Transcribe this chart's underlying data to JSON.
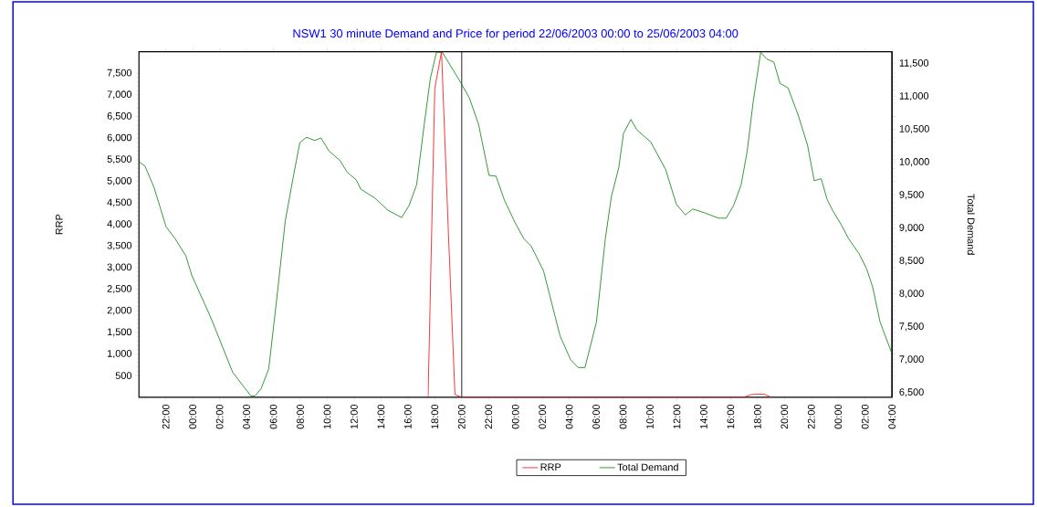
{
  "chart_data": {
    "type": "line",
    "title": "NSW1 30 minute Demand and Price for period 22/06/2003 00:00 to 25/06/2003 04:00",
    "ylabel": "RRP",
    "y2label": "Total Demand",
    "xlim": [
      "2003-06-22T20:00",
      "2003-06-25T04:00"
    ],
    "xticks": [
      {
        "value": "2003-06-22T22:00",
        "label": "22:00"
      },
      {
        "value": "2003-06-23T00:00",
        "label": "00:00"
      },
      {
        "value": "2003-06-23T02:00",
        "label": "02:00"
      },
      {
        "value": "2003-06-23T04:00",
        "label": "04:00"
      },
      {
        "value": "2003-06-23T06:00",
        "label": "06:00"
      },
      {
        "value": "2003-06-23T08:00",
        "label": "08:00"
      },
      {
        "value": "2003-06-23T10:00",
        "label": "10:00"
      },
      {
        "value": "2003-06-23T12:00",
        "label": "12:00"
      },
      {
        "value": "2003-06-23T14:00",
        "label": "14:00"
      },
      {
        "value": "2003-06-23T16:00",
        "label": "16:00"
      },
      {
        "value": "2003-06-23T18:00",
        "label": "18:00"
      },
      {
        "value": "2003-06-23T20:00",
        "label": "20:00"
      },
      {
        "value": "2003-06-23T22:00",
        "label": "22:00"
      },
      {
        "value": "2003-06-24T00:00",
        "label": "00:00"
      },
      {
        "value": "2003-06-24T02:00",
        "label": "02:00"
      },
      {
        "value": "2003-06-24T04:00",
        "label": "04:00"
      },
      {
        "value": "2003-06-24T06:00",
        "label": "06:00"
      },
      {
        "value": "2003-06-24T08:00",
        "label": "08:00"
      },
      {
        "value": "2003-06-24T10:00",
        "label": "10:00"
      },
      {
        "value": "2003-06-24T12:00",
        "label": "12:00"
      },
      {
        "value": "2003-06-24T14:00",
        "label": "14:00"
      },
      {
        "value": "2003-06-24T16:00",
        "label": "16:00"
      },
      {
        "value": "2003-06-24T18:00",
        "label": "18:00"
      },
      {
        "value": "2003-06-24T20:00",
        "label": "20:00"
      },
      {
        "value": "2003-06-24T22:00",
        "label": "22:00"
      },
      {
        "value": "2003-06-25T00:00",
        "label": "00:00"
      },
      {
        "value": "2003-06-25T02:00",
        "label": "02:00"
      },
      {
        "value": "2003-06-25T04:00",
        "label": "04:00"
      }
    ],
    "ylim": [
      0,
      8000
    ],
    "yticks": [
      500,
      {
        "value": 1000,
        "label": "1,000"
      },
      {
        "value": 1500,
        "label": "1,500"
      },
      {
        "value": 2000,
        "label": "2,000"
      },
      {
        "value": 2500,
        "label": "2,500"
      },
      {
        "value": 3000,
        "label": "3,000"
      },
      {
        "value": 3500,
        "label": "3,500"
      },
      {
        "value": 4000,
        "label": "4,000"
      },
      {
        "value": 4500,
        "label": "4,500"
      },
      {
        "value": 5000,
        "label": "5,000"
      },
      {
        "value": 5500,
        "label": "5,500"
      },
      {
        "value": 6000,
        "label": "6,000"
      },
      {
        "value": 6500,
        "label": "6,500"
      },
      {
        "value": 7000,
        "label": "7,000"
      },
      {
        "value": 7500,
        "label": "7,500"
      }
    ],
    "y2lim": [
      6430,
      11680
    ],
    "y2ticks": [
      {
        "value": 6500,
        "label": "6,500"
      },
      {
        "value": 7000,
        "label": "7,000"
      },
      {
        "value": 7500,
        "label": "7,500"
      },
      {
        "value": 8000,
        "label": "8,000"
      },
      {
        "value": 8500,
        "label": "8,500"
      },
      {
        "value": 9000,
        "label": "9,000"
      },
      {
        "value": 9500,
        "label": "9,500"
      },
      {
        "value": 10000,
        "label": "10,000"
      },
      {
        "value": 10500,
        "label": "10,500"
      },
      {
        "value": 11000,
        "label": "11,000"
      },
      {
        "value": 11500,
        "label": "11,500"
      }
    ],
    "series": [
      {
        "name": "RRP",
        "color": "#ff0000",
        "x": [
          "2003-06-23T17:30",
          "2003-06-23T18:00",
          "2003-06-23T18:30",
          "2003-06-23T19:00",
          "2003-06-23T19:30",
          "2003-06-23T20:00",
          "2003-06-24T17:00",
          "2003-06-24T17:30",
          "2003-06-24T18:00",
          "2003-06-24T18:30",
          "2003-06-24T19:00"
        ],
        "values": [
          0,
          7150,
          8000,
          3900,
          60,
          0,
          0,
          60,
          70,
          70,
          0
        ]
      },
      {
        "name": "Total Demand",
        "color": "#008000",
        "axis": "y2",
        "x": [
          "2003-06-22T20:00",
          "2003-06-22T20:27",
          "2003-06-22T21:07",
          "2003-06-22T22:01",
          "2003-06-22T22:41",
          "2003-06-22T23:29",
          "2003-06-22T23:56",
          "2003-06-23T01:23",
          "2003-06-23T02:58",
          "2003-06-23T04:19",
          "2003-06-23T04:38",
          "2003-06-23T05:05",
          "2003-06-23T05:39",
          "2003-06-23T06:13",
          "2003-06-23T06:53",
          "2003-06-23T07:27",
          "2003-06-23T07:58",
          "2003-06-23T08:28",
          "2003-06-23T09:05",
          "2003-06-23T09:32",
          "2003-06-23T10:08",
          "2003-06-23T10:56",
          "2003-06-23T11:29",
          "2003-06-23T12:10",
          "2003-06-23T12:30",
          "2003-06-23T13:31",
          "2003-06-23T14:31",
          "2003-06-23T15:32",
          "2003-06-23T16:05",
          "2003-06-23T16:39",
          "2003-06-23T17:13",
          "2003-06-23T17:40",
          "2003-06-23T18:07",
          "2003-06-23T18:34",
          "2003-06-23T20:01",
          "2003-06-23T20:35",
          "2003-06-23T21:15",
          "2003-06-23T22:02",
          "2003-06-23T22:33",
          "2003-06-23T23:10",
          "2003-06-23T23:57",
          "2003-06-24T00:37",
          "2003-06-24T01:11",
          "2003-06-24T02:05",
          "2003-06-24T03:19",
          "2003-06-24T04:06",
          "2003-06-24T04:40",
          "2003-06-24T05:10",
          "2003-06-24T06:01",
          "2003-06-24T06:41",
          "2003-06-24T07:08",
          "2003-06-24T07:41",
          "2003-06-24T08:02",
          "2003-06-24T08:35",
          "2003-06-24T09:02",
          "2003-06-24T10:03",
          "2003-06-24T11:10",
          "2003-06-24T11:58",
          "2003-06-24T12:38",
          "2003-06-24T13:11",
          "2003-06-24T14:05",
          "2003-06-24T15:06",
          "2003-06-24T15:40",
          "2003-06-24T16:13",
          "2003-06-24T16:47",
          "2003-06-24T17:14",
          "2003-06-24T17:41",
          "2003-06-24T18:14",
          "2003-06-24T18:41",
          "2003-06-24T19:13",
          "2003-06-24T19:40",
          "2003-06-24T20:16",
          "2003-06-24T21:03",
          "2003-06-24T21:43",
          "2003-06-24T22:13",
          "2003-06-24T22:44",
          "2003-06-24T23:11",
          "2003-06-24T23:38",
          "2003-06-25T00:12",
          "2003-06-25T00:46",
          "2003-06-25T01:33",
          "2003-06-25T02:07",
          "2003-06-25T02:34",
          "2003-06-25T03:07",
          "2003-06-25T04:00"
        ],
        "values": [
          10010,
          9940,
          9620,
          9020,
          8840,
          8580,
          8280,
          7620,
          6810,
          6450,
          6450,
          6560,
          6860,
          7870,
          9110,
          9750,
          10300,
          10380,
          10330,
          10370,
          10170,
          10030,
          9850,
          9730,
          9590,
          9460,
          9270,
          9160,
          9340,
          9660,
          10580,
          11270,
          11670,
          11670,
          11180,
          10970,
          10580,
          9800,
          9790,
          9430,
          9090,
          8840,
          8720,
          8350,
          7360,
          7000,
          6880,
          6880,
          7570,
          8840,
          9480,
          9920,
          10440,
          10650,
          10490,
          10310,
          9890,
          9360,
          9200,
          9290,
          9230,
          9150,
          9150,
          9340,
          9660,
          10170,
          10930,
          11670,
          11570,
          11520,
          11200,
          11130,
          10700,
          10260,
          9720,
          9750,
          9430,
          9250,
          9060,
          8840,
          8610,
          8380,
          8100,
          7570,
          7090
        ]
      }
    ],
    "ref_lines": [
      {
        "axis": "x",
        "value": "2003-06-23T20:00",
        "color": "#000000"
      }
    ],
    "legend": "bottom"
  }
}
